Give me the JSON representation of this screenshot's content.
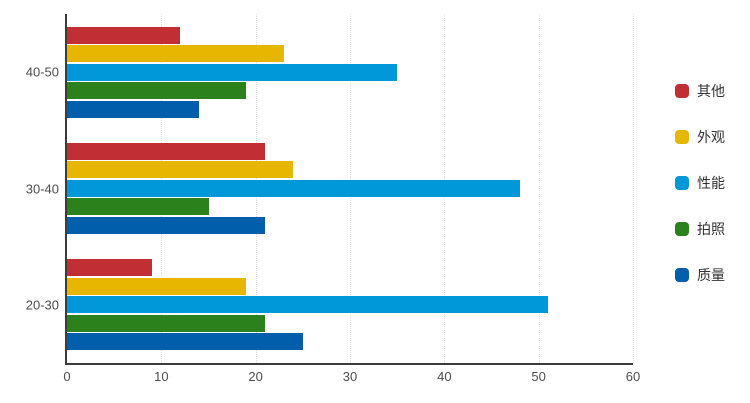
{
  "chart_data": {
    "type": "bar",
    "orientation": "horizontal",
    "title": "",
    "xlabel": "",
    "ylabel": "",
    "categories": [
      "40-50",
      "30-40",
      "20-30"
    ],
    "series": [
      {
        "key": "other",
        "name": "其他",
        "color": "#c12e34",
        "values": [
          12,
          21,
          9
        ]
      },
      {
        "key": "appearance",
        "name": "外观",
        "color": "#e6b600",
        "values": [
          23,
          24,
          19
        ]
      },
      {
        "key": "performance",
        "name": "性能",
        "color": "#0098d9",
        "values": [
          35,
          48,
          51
        ]
      },
      {
        "key": "photo",
        "name": "拍照",
        "color": "#2b821d",
        "values": [
          19,
          15,
          21
        ]
      },
      {
        "key": "quality",
        "name": "质量",
        "color": "#005eaa",
        "values": [
          14,
          21,
          25
        ]
      }
    ],
    "xlim": [
      0,
      60
    ],
    "x_ticks": [
      0,
      10,
      20,
      30,
      40,
      50,
      60
    ],
    "grid": "vertical-dotted",
    "legend_position": "right",
    "colors": {
      "axis": "#3c3c3c",
      "gridline": "#e0e0e0",
      "axis_label": "#4d4d4d",
      "legend_text": "#333333",
      "background": "#ffffff"
    }
  }
}
